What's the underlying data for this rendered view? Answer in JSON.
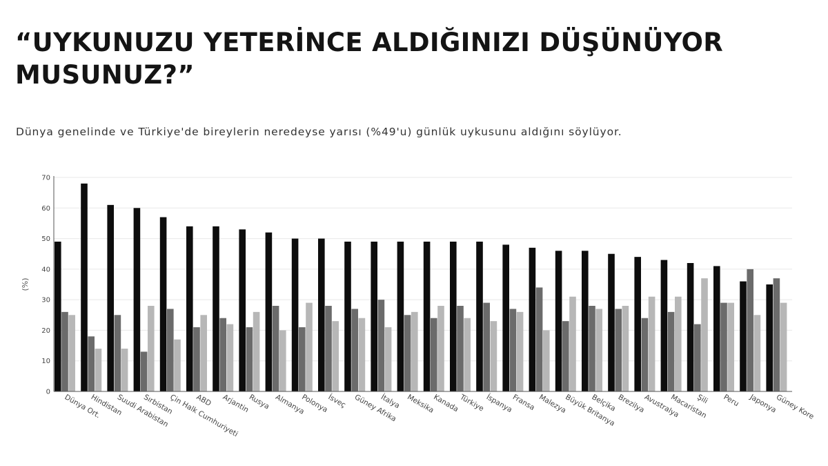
{
  "header": {
    "title": "“UYKUNUZU YETERİNCE ALDIĞINIZI DÜŞÜNÜYOR MUSUNUZ?”",
    "subtitle": "Dünya genelinde ve Türkiye'de bireylerin neredeyse yarısı (%49'u) günlük uykusunu aldığını söylüyor."
  },
  "colors": {
    "series": [
      "#0d0d0d",
      "#6b6b6b",
      "#b7b7b7"
    ],
    "grid": "#e8e8e8",
    "axis": "#555555"
  },
  "chart_data": {
    "type": "bar",
    "ylabel": "(%)",
    "ylim": [
      0,
      70
    ],
    "yticks": [
      0,
      10,
      20,
      30,
      40,
      50,
      60,
      70
    ],
    "grid": true,
    "categories": [
      "Dünya Ort.",
      "Hindistan",
      "Suudi Arabistan",
      "Sırbistan",
      "Çin Halk Cumhuriyeti",
      "ABD",
      "Arjantin",
      "Rusya",
      "Almanya",
      "Polonya",
      "İsveç",
      "Güney Afrika",
      "İtalya",
      "Meksika",
      "Kanada",
      "Türkiye",
      "İspanya",
      "Fransa",
      "Malezya",
      "Büyük Britanya",
      "Belçika",
      "Brezilya",
      "Avustralya",
      "Macaristan",
      "Şili",
      "Peru",
      "Japonya",
      "Güney Kore"
    ],
    "series": [
      {
        "values": [
          49,
          68,
          61,
          60,
          57,
          54,
          54,
          53,
          52,
          50,
          50,
          49,
          49,
          49,
          49,
          49,
          49,
          48,
          47,
          46,
          46,
          45,
          44,
          43,
          42,
          41,
          36,
          35
        ]
      },
      {
        "values": [
          26,
          18,
          25,
          13,
          27,
          21,
          24,
          21,
          28,
          21,
          28,
          27,
          30,
          25,
          24,
          28,
          29,
          27,
          34,
          23,
          28,
          27,
          24,
          26,
          22,
          29,
          40,
          37
        ]
      },
      {
        "values": [
          25,
          14,
          14,
          28,
          17,
          25,
          22,
          26,
          20,
          29,
          23,
          24,
          21,
          26,
          28,
          24,
          23,
          26,
          20,
          31,
          27,
          28,
          31,
          31,
          37,
          29,
          25,
          29
        ]
      }
    ]
  }
}
